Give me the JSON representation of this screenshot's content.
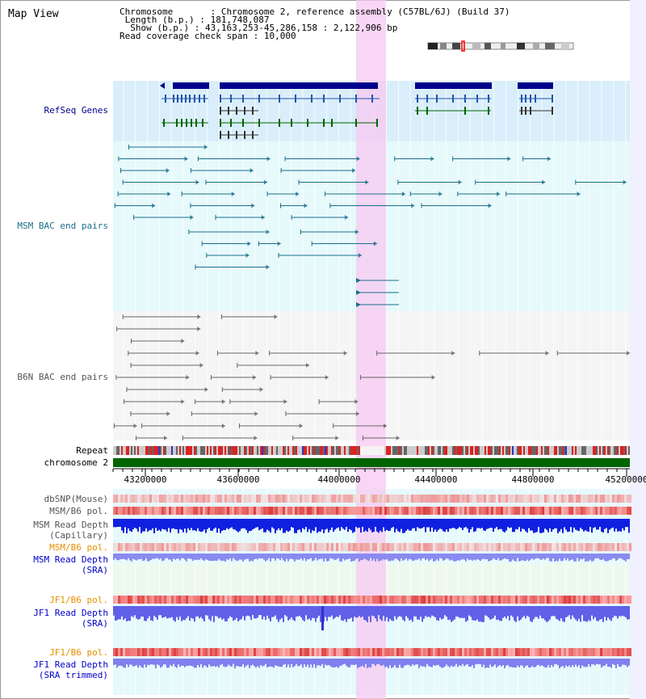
{
  "page": {
    "title": "Map View",
    "info": {
      "chromosome_label": "Chromosome",
      "chromosome_value": "Chromosome 2, reference assembly (C57BL/6J) (Build 37)",
      "length_label": "Length (b.p.)",
      "length_value": "181,748,087",
      "show_label": "Show (b.p.)",
      "show_value": "43,163,253-45,286,158 : 2,122,906 bp",
      "coverage_label": "Read coverage check span",
      "coverage_value": "10,000"
    }
  },
  "tracks": {
    "refseq": {
      "label": "RefSeq Genes",
      "color": "#00008b",
      "bg": "#d9eefa"
    },
    "msm_bac": {
      "label": "MSM BAC end pairs",
      "color": "#1a6e8a",
      "bg": "#e6f9fb"
    },
    "b6n_bac": {
      "label": "B6N BAC end pairs",
      "color": "#555555",
      "bg": "#f5f5f5"
    },
    "repeat": {
      "label": "Repeat"
    },
    "chromosome": {
      "label": "chromosome 2",
      "color": "#006400"
    },
    "dbsnp": {
      "label": "dbSNP(Mouse)",
      "color": "#555555"
    },
    "msm_b6_pol_1": {
      "label": "MSM/B6 pol.",
      "color": "#555555"
    },
    "msm_depth_cap": {
      "label_line1": "MSM Read Depth",
      "label_line2": "(Capillary)",
      "color": "#555555"
    },
    "msm_b6_pol_2": {
      "label": "MSM/B6 pol.",
      "color": "#e89000"
    },
    "msm_depth_sra": {
      "label_line1": "MSM Read Depth",
      "label_line2": "(SRA)",
      "color": "#0000cc"
    },
    "jf1_b6_pol_1": {
      "label": "JF1/B6 pol.",
      "color": "#e89000"
    },
    "jf1_depth_sra": {
      "label_line1": "JF1 Read Depth",
      "label_line2": "(SRA)",
      "color": "#0000cc"
    },
    "jf1_b6_pol_2": {
      "label": "JF1/B6 pol.",
      "color": "#e89000"
    },
    "jf1_depth_trim": {
      "label_line1": "JF1 Read Depth",
      "label_line2": "(SRA trimmed)",
      "color": "#0000cc"
    }
  },
  "axis": {
    "ticks": [
      "43200000",
      "43600000",
      "44000000",
      "44400000",
      "44800000",
      "45200000"
    ],
    "tick_values": [
      43200000,
      43600000,
      44000000,
      44400000,
      44800000,
      45200000
    ]
  },
  "view": {
    "start_bp": 43163253,
    "end_bp": 45286158,
    "highlight_start_bp": 44070000,
    "highlight_end_bp": 44195000
  }
}
